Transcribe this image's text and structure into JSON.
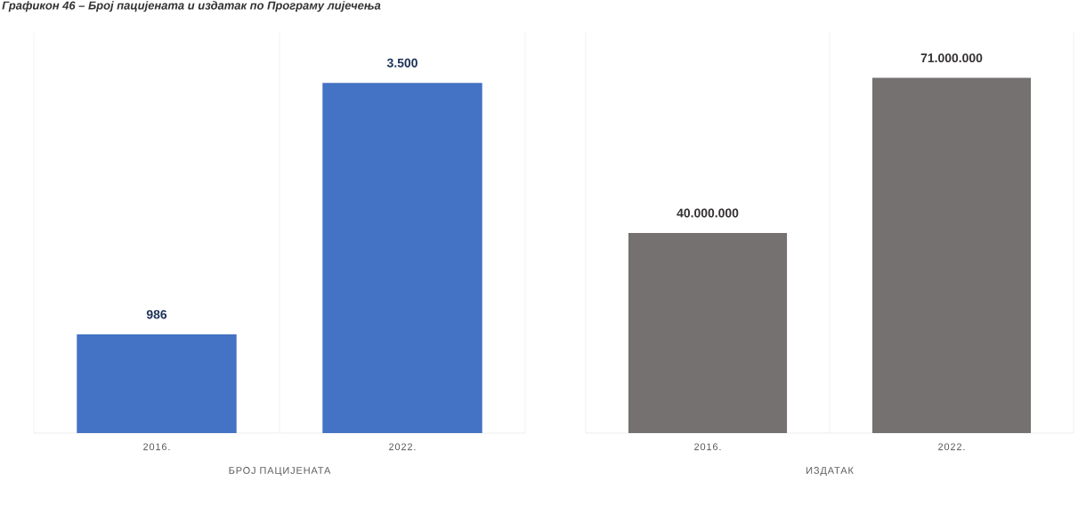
{
  "chart_data": [
    {
      "type": "bar",
      "title": "Графикон 46 – Број пацијената и издатак по Програму лијечења",
      "xlabel": "БРОЈ ПАЦИЈЕНАТА",
      "categories": [
        "2016.",
        "2022."
      ],
      "values": [
        986,
        3500
      ],
      "value_labels": [
        "986",
        "3.500"
      ],
      "color": "#4472c4",
      "ylim": [
        0,
        4000
      ],
      "grid": "x"
    },
    {
      "type": "bar",
      "xlabel": "ИЗДАТАК",
      "categories": [
        "2016.",
        "2022."
      ],
      "values": [
        40000000,
        71000000
      ],
      "value_labels": [
        "40.000.000",
        "71.000.000"
      ],
      "color": "#767171",
      "ylim": [
        0,
        80000000
      ],
      "grid": "x"
    }
  ]
}
